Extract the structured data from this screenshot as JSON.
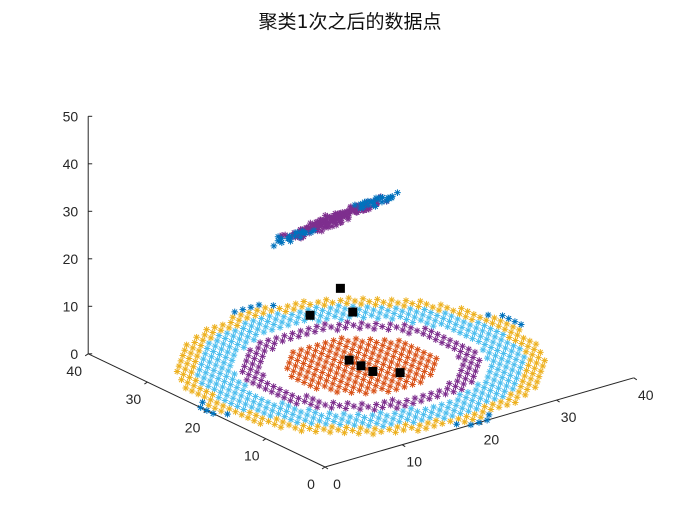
{
  "chart_data": {
    "type": "scatter3d",
    "title": "聚类1次之后的数据点",
    "xlabel": "",
    "ylabel": "",
    "zlabel": "",
    "xlim": [
      0,
      40
    ],
    "ylim": [
      0,
      40
    ],
    "zlim": [
      0,
      50
    ],
    "xticks": [
      "0",
      "10",
      "20",
      "30",
      "40"
    ],
    "yticks": [
      "0",
      "10",
      "20",
      "30",
      "40"
    ],
    "zticks": [
      "0",
      "10",
      "20",
      "30",
      "40",
      "50"
    ],
    "grid": false,
    "legend": "none",
    "marker": "*",
    "series": [
      {
        "color": "#D95319",
        "description": "central disk",
        "shape": "disk",
        "center": [
          20,
          20
        ],
        "radius": 8,
        "z": 0
      },
      {
        "color": "#7E2F8E",
        "description": "inner ring",
        "shape": "ring",
        "center": [
          20,
          20
        ],
        "r_inner": 10,
        "r_outer": 12.5,
        "z": 0
      },
      {
        "color": "#4DBEEE",
        "description": "outer ring",
        "shape": "ring",
        "center": [
          20,
          20
        ],
        "r_inner": 13,
        "r_outer": 17,
        "z": 0
      },
      {
        "color": "#EDB120",
        "description": "edge band",
        "shape": "ring",
        "center": [
          20,
          20
        ],
        "r_inner": 17,
        "r_outer": 19,
        "z": 0
      },
      {
        "color": "#0072BD",
        "description": "square corners",
        "shape": "square_corners",
        "xrange": [
          0,
          40
        ],
        "yrange": [
          0,
          40
        ],
        "min_radius": 19,
        "z": 0
      },
      {
        "color": "#7E2F8E",
        "description": "elevated strip",
        "shape": "strip",
        "start": [
          24,
          22,
          32
        ],
        "end": [
          26,
          40,
          12
        ],
        "width": 4
      },
      {
        "color": "#0072BD",
        "description": "strip ends",
        "shape": "strip_ends",
        "start": [
          24,
          22,
          32
        ],
        "end": [
          26,
          40,
          12
        ],
        "width": 4
      }
    ],
    "centers": {
      "color": "#000000",
      "marker": "square",
      "points": [
        [
          22,
          16,
          0
        ],
        [
          20,
          18,
          0
        ],
        [
          20,
          20,
          0
        ],
        [
          20,
          22,
          0
        ],
        [
          22,
          24,
          8
        ],
        [
          18,
          26,
          8
        ],
        [
          25,
          30,
          8
        ]
      ]
    }
  }
}
